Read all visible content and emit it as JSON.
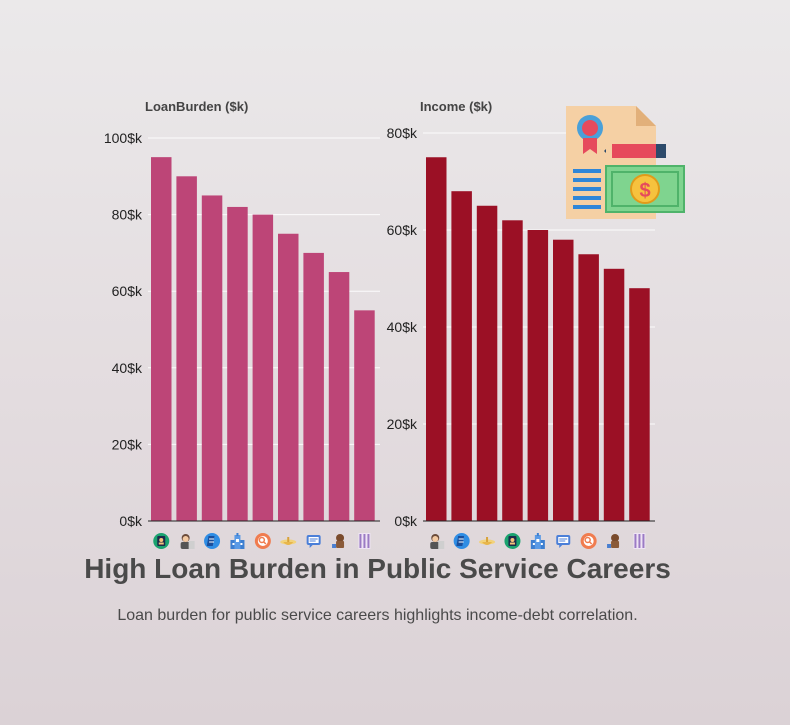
{
  "title": "High Loan Burden in Public Service Careers",
  "subtitle": "Loan burden for public service careers highlights income-debt correlation.",
  "colors": {
    "loan_bar": "#bd4577",
    "income_bar": "#9b1025"
  },
  "decoration_icon": "certificate-money-icon",
  "chart_data": [
    {
      "type": "bar",
      "panel_label": "LoanBurden ($k)",
      "categories": [
        "teacher",
        "social-worker",
        "librarian",
        "nurse",
        "public-defender",
        "counselor",
        "nonprofit-worker",
        "firefighter",
        "police-officer"
      ],
      "category_icons": [
        "teacher-icon",
        "social-worker-icon",
        "librarian-icon",
        "nurse-icon",
        "public-defender-icon",
        "counselor-icon",
        "nonprofit-worker-icon",
        "firefighter-icon",
        "police-officer-icon"
      ],
      "values": [
        95,
        90,
        85,
        82,
        80,
        75,
        70,
        65,
        55
      ],
      "ylim": [
        0,
        100
      ],
      "yticks": [
        0,
        20,
        40,
        60,
        80,
        100
      ],
      "ytick_labels": [
        "0$k",
        "20$k",
        "40$k",
        "60$k",
        "80$k",
        "100$k"
      ],
      "grid": true
    },
    {
      "type": "bar",
      "panel_label": "Income ($k)",
      "categories": [
        "social-worker",
        "librarian",
        "counselor",
        "teacher",
        "nurse",
        "nonprofit-worker",
        "public-defender",
        "firefighter",
        "police-officer"
      ],
      "category_icons": [
        "social-worker-icon",
        "librarian-icon",
        "counselor-icon",
        "teacher-icon",
        "nurse-icon",
        "nonprofit-worker-icon",
        "public-defender-icon",
        "firefighter-icon",
        "police-officer-icon"
      ],
      "values": [
        75,
        68,
        65,
        62,
        60,
        58,
        55,
        52,
        48
      ],
      "ylim": [
        0,
        80
      ],
      "yticks": [
        0,
        20,
        40,
        60,
        80
      ],
      "ytick_labels": [
        "0$k",
        "20$k",
        "40$k",
        "60$k",
        "80$k"
      ],
      "grid": true
    }
  ]
}
